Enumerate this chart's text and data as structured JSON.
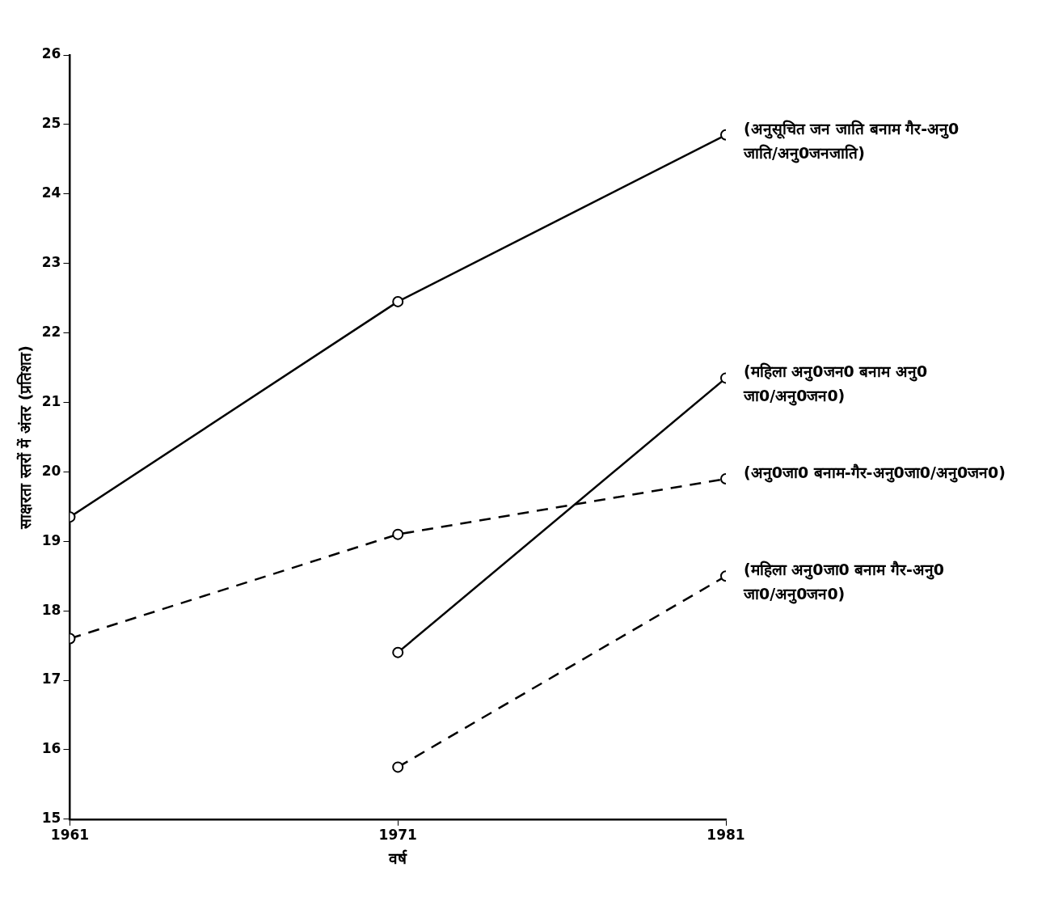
{
  "chart_data": {
    "type": "line",
    "xlabel": "वर्ष",
    "ylabel": "साक्षरता स्तरों में अंतर (प्रतिशत)",
    "x": [
      1961,
      1971,
      1981
    ],
    "xlim": [
      1961,
      1981
    ],
    "xticks": [
      1961,
      1971,
      1981
    ],
    "ylim": [
      15,
      26
    ],
    "yticks": [
      15,
      16,
      17,
      18,
      19,
      20,
      21,
      22,
      23,
      24,
      25,
      26
    ],
    "grid": false,
    "legend": false,
    "marker": "circle",
    "series": [
      {
        "name": "(अनुसूचित जन जाति बनाम गैर-अनु0 जाति/अनु0जनजाति)",
        "color": "#000000",
        "line_style": "solid",
        "values": [
          19.35,
          22.45,
          24.85
        ]
      },
      {
        "name": "(महिला अनु0जन0 बनाम अनु0 जा0/अनु0जन0)",
        "color": "#000000",
        "line_style": "solid",
        "values": [
          null,
          17.4,
          21.35
        ]
      },
      {
        "name": "(अनु0जा0 बनाम-गैर-अनु0जा0/अनु0जन0)",
        "color": "#000000",
        "line_style": "dashed",
        "values": [
          17.6,
          19.1,
          19.9
        ]
      },
      {
        "name": "(महिला अनु0जा0 बनाम गैर-अनु0 जा0/अनु0जन0)",
        "color": "#000000",
        "line_style": "dashed",
        "values": [
          null,
          15.75,
          18.5
        ]
      }
    ]
  }
}
